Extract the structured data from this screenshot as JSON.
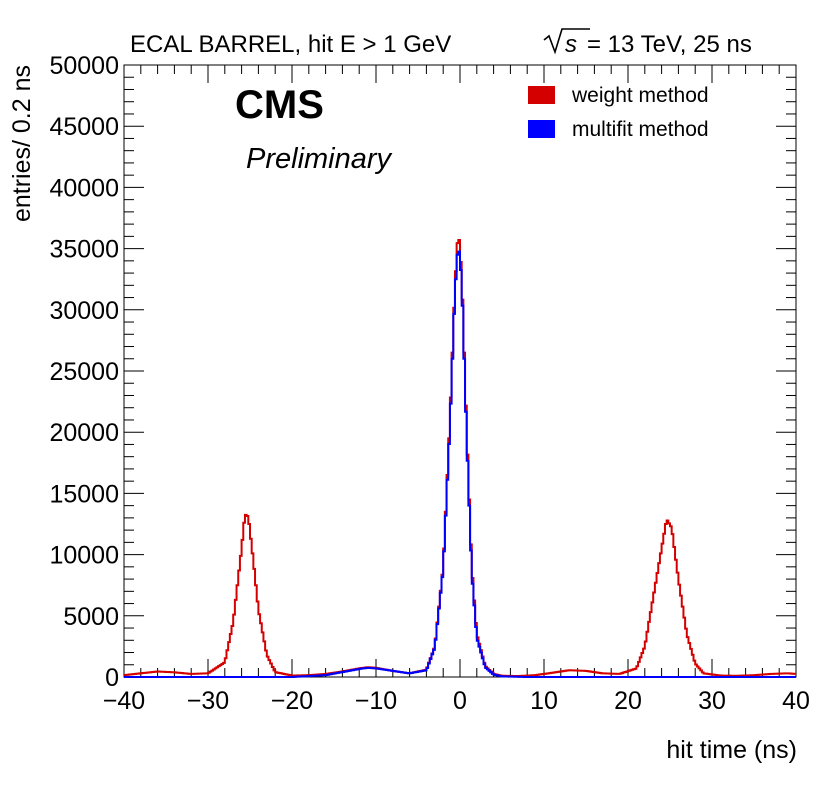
{
  "chart_data": {
    "type": "line",
    "title_left": "ECAL BARREL, hit E > 1 GeV",
    "title_right": "= 13 TeV, 25 ns",
    "title_sqrt_symbol": "s",
    "experiment_label": "CMS",
    "status_label": "Preliminary",
    "xlabel": "hit time (ns)",
    "ylabel": "entries/ 0.2 ns",
    "xlim": [
      -40,
      40
    ],
    "ylim": [
      0,
      50000
    ],
    "x_ticks": [
      "−40",
      "−30",
      "−20",
      "−10",
      "0",
      "10",
      "20",
      "30",
      "40"
    ],
    "y_ticks": [
      "0",
      "5000",
      "10000",
      "15000",
      "20000",
      "25000",
      "30000",
      "35000",
      "40000",
      "45000",
      "50000"
    ],
    "legend_position": "top-right",
    "series": [
      {
        "name": "weight method",
        "color": "#d40000",
        "points": [
          [
            -40,
            150
          ],
          [
            -38,
            300
          ],
          [
            -36,
            450
          ],
          [
            -34,
            380
          ],
          [
            -32,
            250
          ],
          [
            -30,
            300
          ],
          [
            -28,
            1200
          ],
          [
            -27,
            4500
          ],
          [
            -26,
            10500
          ],
          [
            -25.6,
            13300
          ],
          [
            -25.2,
            13100
          ],
          [
            -24.6,
            9500
          ],
          [
            -24,
            5500
          ],
          [
            -23,
            1800
          ],
          [
            -22,
            400
          ],
          [
            -20,
            120
          ],
          [
            -18,
            150
          ],
          [
            -16,
            250
          ],
          [
            -14,
            450
          ],
          [
            -12,
            700
          ],
          [
            -11,
            800
          ],
          [
            -10,
            750
          ],
          [
            -8,
            500
          ],
          [
            -6,
            300
          ],
          [
            -4,
            600
          ],
          [
            -3,
            2500
          ],
          [
            -2,
            9000
          ],
          [
            -1.2,
            21000
          ],
          [
            -0.6,
            32000
          ],
          [
            -0.2,
            36600
          ],
          [
            0.2,
            33000
          ],
          [
            0.8,
            20000
          ],
          [
            1.4,
            9000
          ],
          [
            2,
            3500
          ],
          [
            3,
            900
          ],
          [
            4,
            250
          ],
          [
            5,
            100
          ],
          [
            7,
            80
          ],
          [
            9,
            150
          ],
          [
            11,
            350
          ],
          [
            13,
            550
          ],
          [
            15,
            500
          ],
          [
            17,
            300
          ],
          [
            19,
            250
          ],
          [
            21,
            700
          ],
          [
            22,
            2500
          ],
          [
            23,
            6500
          ],
          [
            24,
            10500
          ],
          [
            24.6,
            12900
          ],
          [
            25.2,
            12200
          ],
          [
            26,
            8000
          ],
          [
            27,
            3500
          ],
          [
            28,
            1100
          ],
          [
            29,
            300
          ],
          [
            31,
            120
          ],
          [
            33,
            100
          ],
          [
            35,
            150
          ],
          [
            37,
            250
          ],
          [
            39,
            300
          ],
          [
            40,
            250
          ]
        ]
      },
      {
        "name": "multifit method",
        "color": "#0000ff",
        "points": [
          [
            -40,
            0
          ],
          [
            -30,
            0
          ],
          [
            -20,
            0
          ],
          [
            -16,
            150
          ],
          [
            -14,
            400
          ],
          [
            -12,
            650
          ],
          [
            -11,
            750
          ],
          [
            -10,
            700
          ],
          [
            -8,
            500
          ],
          [
            -6,
            300
          ],
          [
            -4,
            550
          ],
          [
            -3,
            2400
          ],
          [
            -2,
            8800
          ],
          [
            -1.2,
            20500
          ],
          [
            -0.6,
            31500
          ],
          [
            -0.2,
            35500
          ],
          [
            0.2,
            32500
          ],
          [
            0.8,
            19500
          ],
          [
            1.4,
            8500
          ],
          [
            2,
            3200
          ],
          [
            3,
            800
          ],
          [
            4,
            200
          ],
          [
            5,
            50
          ],
          [
            8,
            0
          ],
          [
            20,
            0
          ],
          [
            30,
            0
          ],
          [
            40,
            0
          ]
        ]
      }
    ]
  }
}
